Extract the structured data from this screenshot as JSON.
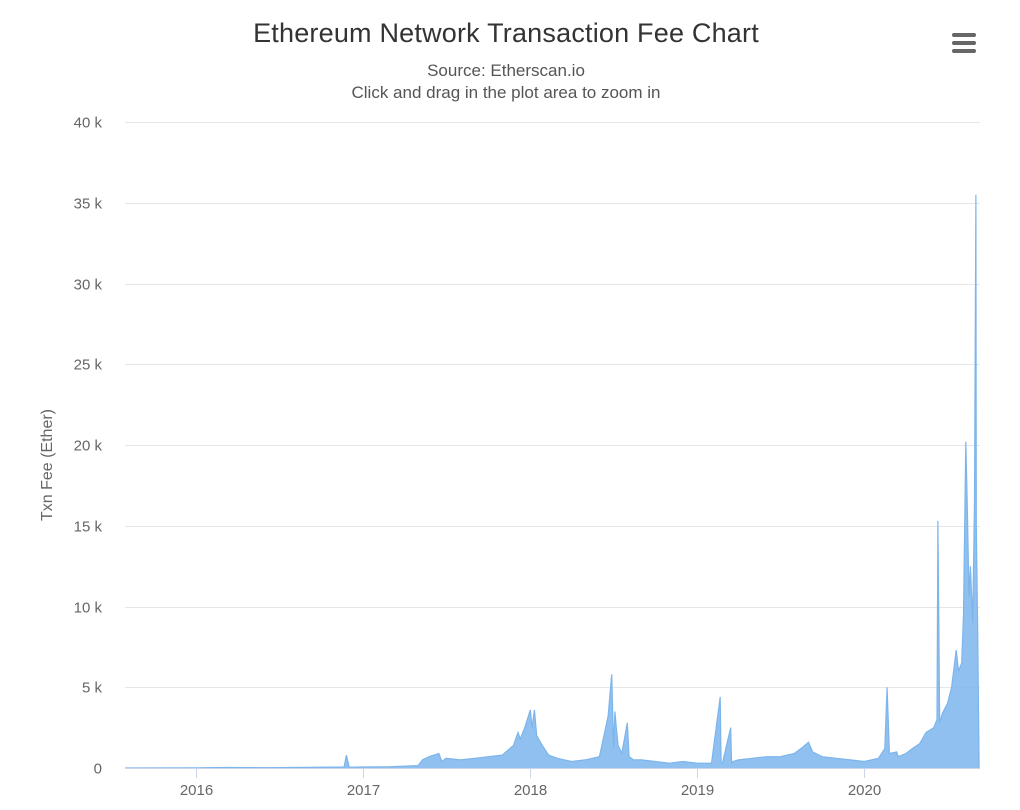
{
  "chart": {
    "title": "Ethereum Network Transaction Fee Chart",
    "subtitle_source": "Source: Etherscan.io",
    "subtitle_hint": "Click and drag in the plot area to zoom in",
    "menu_icon": "hamburger-menu-icon"
  },
  "colors": {
    "series": "#7cb5ec",
    "grid": "#e6e6e6",
    "axis": "#ccd6eb",
    "text": "#333333",
    "label": "#666666"
  },
  "chart_data": {
    "type": "area",
    "title": "Ethereum Network Transaction Fee Chart",
    "subtitle": [
      "Source: Etherscan.io",
      "Click and drag in the plot area to zoom in"
    ],
    "xlabel": "",
    "ylabel": "Txn Fee (Ether)",
    "x_type": "date",
    "xlim": [
      "2015-07-30",
      "2020-09-10"
    ],
    "ylim": [
      0,
      40000
    ],
    "y_ticks": [
      0,
      5000,
      10000,
      15000,
      20000,
      25000,
      30000,
      35000,
      40000
    ],
    "y_tick_labels": [
      "0",
      "5 k",
      "10 k",
      "15 k",
      "20 k",
      "25 k",
      "30 k",
      "35 k",
      "40 k"
    ],
    "x_ticks": [
      "2016-01-01",
      "2017-01-01",
      "2018-01-01",
      "2019-01-01",
      "2020-01-01"
    ],
    "x_tick_labels": [
      "2016",
      "2017",
      "2018",
      "2019",
      "2020"
    ],
    "grid": true,
    "legend": "none",
    "series": [
      {
        "x": [
          "2015-07-30",
          "2016-01-01",
          "2016-03-01",
          "2016-06-01",
          "2016-09-01",
          "2016-11-20",
          "2016-11-25",
          "2016-12-01",
          "2017-01-01",
          "2017-03-01",
          "2017-05-01",
          "2017-05-10",
          "2017-05-25",
          "2017-06-15",
          "2017-06-22",
          "2017-07-01",
          "2017-08-01",
          "2017-09-01",
          "2017-10-01",
          "2017-11-01",
          "2017-11-25",
          "2017-12-05",
          "2017-12-10",
          "2017-12-20",
          "2018-01-01",
          "2018-01-05",
          "2018-01-10",
          "2018-01-15",
          "2018-01-25",
          "2018-02-10",
          "2018-03-01",
          "2018-04-01",
          "2018-05-01",
          "2018-06-01",
          "2018-06-20",
          "2018-06-28",
          "2018-07-02",
          "2018-07-05",
          "2018-07-08",
          "2018-07-12",
          "2018-07-20",
          "2018-08-01",
          "2018-08-05",
          "2018-08-15",
          "2018-09-01",
          "2018-10-01",
          "2018-11-01",
          "2018-12-01",
          "2019-01-01",
          "2019-02-01",
          "2019-02-20",
          "2019-02-22",
          "2019-02-25",
          "2019-03-15",
          "2019-03-17",
          "2019-03-20",
          "2019-04-01",
          "2019-05-01",
          "2019-06-01",
          "2019-07-01",
          "2019-08-01",
          "2019-08-20",
          "2019-09-01",
          "2019-09-10",
          "2019-10-01",
          "2019-11-01",
          "2019-12-01",
          "2020-01-01",
          "2020-02-01",
          "2020-02-15",
          "2020-02-20",
          "2020-02-25",
          "2020-03-12",
          "2020-03-15",
          "2020-04-01",
          "2020-04-15",
          "2020-05-01",
          "2020-05-15",
          "2020-06-01",
          "2020-06-08",
          "2020-06-10",
          "2020-06-14",
          "2020-06-20",
          "2020-07-01",
          "2020-07-10",
          "2020-07-20",
          "2020-07-25",
          "2020-08-01",
          "2020-08-05",
          "2020-08-10",
          "2020-08-13",
          "2020-08-17",
          "2020-08-20",
          "2020-08-25",
          "2020-08-29",
          "2020-09-01",
          "2020-09-02",
          "2020-09-05",
          "2020-09-08"
        ],
        "values": [
          0,
          10,
          30,
          20,
          40,
          60,
          800,
          50,
          60,
          80,
          150,
          500,
          700,
          900,
          400,
          600,
          500,
          600,
          700,
          800,
          1400,
          2200,
          1800,
          2500,
          3600,
          2500,
          3600,
          2000,
          1500,
          800,
          600,
          400,
          500,
          700,
          3200,
          5800,
          1200,
          3500,
          2500,
          1400,
          900,
          2800,
          700,
          500,
          500,
          400,
          300,
          400,
          300,
          300,
          4400,
          300,
          300,
          2500,
          300,
          400,
          500,
          600,
          700,
          700,
          900,
          1300,
          1600,
          1000,
          700,
          600,
          500,
          400,
          600,
          1200,
          5000,
          900,
          1000,
          700,
          900,
          1200,
          1500,
          2200,
          2500,
          3000,
          15300,
          2800,
          3400,
          4000,
          5000,
          7300,
          6000,
          6500,
          9500,
          20200,
          16500,
          10600,
          12500,
          9000,
          16500,
          35500,
          15000,
          8500,
          0
        ]
      }
    ]
  }
}
